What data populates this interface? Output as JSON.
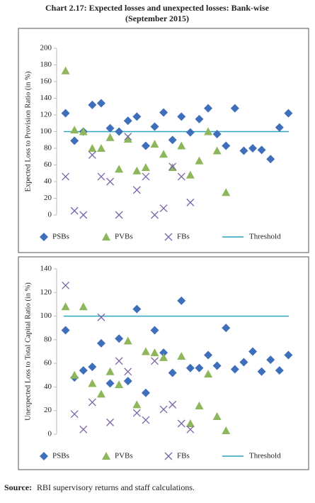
{
  "title": "Chart 2.17: Expected losses and unexpected losses: Bank-wise",
  "subtitle": "(September 2015)",
  "source": {
    "label": "Source:",
    "text": "RBI supervisory returns and staff calculations."
  },
  "chart_data": [
    {
      "type": "scatter",
      "ylabel": "Expected Loss to Provision Ratio (in %)",
      "xlim": [
        0,
        27
      ],
      "ylim": [
        0,
        200
      ],
      "yticks": [
        0,
        20,
        40,
        60,
        80,
        100,
        120,
        140,
        160,
        180,
        200
      ],
      "series": [
        {
          "name": "PSBs",
          "marker": "diamond",
          "color": "#3f6fba",
          "x": [
            1,
            2,
            3,
            4,
            5,
            6,
            7,
            8,
            9,
            10,
            11,
            12,
            13,
            14,
            15,
            16,
            17,
            18,
            19,
            20,
            21,
            22,
            23,
            24,
            25,
            26
          ],
          "values": [
            122,
            89,
            100,
            132,
            134,
            104,
            100,
            113,
            118,
            83,
            106,
            123,
            90,
            118,
            99,
            115,
            128,
            97,
            83,
            128,
            77,
            80,
            78,
            67,
            105,
            122
          ]
        },
        {
          "name": "PVBs",
          "marker": "triangle",
          "color": "#8db75a",
          "x": [
            1,
            2,
            3,
            4,
            5,
            6,
            7,
            8,
            9,
            10,
            11,
            12,
            13,
            14,
            15,
            16,
            17,
            18,
            19
          ],
          "values": [
            173,
            102,
            100,
            80,
            80,
            93,
            55,
            91,
            53,
            57,
            85,
            73,
            57,
            83,
            48,
            65,
            100,
            77,
            27
          ]
        },
        {
          "name": "FBs",
          "marker": "cross",
          "color": "#7a64a8",
          "x": [
            1,
            2,
            3,
            4,
            5,
            6,
            7,
            8,
            9,
            10,
            11,
            12,
            13,
            14,
            15
          ],
          "values": [
            46,
            5,
            0,
            72,
            46,
            40,
            0,
            94,
            30,
            46,
            0,
            8,
            58,
            46,
            15
          ]
        }
      ],
      "threshold": {
        "name": "Threshold",
        "value": 100,
        "color": "#2fa4c4"
      }
    },
    {
      "type": "scatter",
      "ylabel": "Unexpected Loss to Total Capital Ratio (in %)",
      "xlim": [
        0,
        27
      ],
      "ylim": [
        0,
        140
      ],
      "yticks": [
        0,
        20,
        40,
        60,
        80,
        100,
        120,
        140
      ],
      "series": [
        {
          "name": "PSBs",
          "marker": "diamond",
          "color": "#3f6fba",
          "x": [
            1,
            2,
            3,
            4,
            5,
            6,
            7,
            8,
            9,
            10,
            11,
            12,
            13,
            14,
            15,
            16,
            17,
            18,
            19,
            20,
            21,
            22,
            23,
            24,
            25,
            26
          ],
          "values": [
            88,
            48,
            54,
            57,
            77,
            43,
            81,
            45,
            106,
            35,
            88,
            69,
            52,
            113,
            56,
            56,
            67,
            58,
            90,
            55,
            61,
            70,
            53,
            63,
            54,
            67
          ]
        },
        {
          "name": "PVBs",
          "marker": "triangle",
          "color": "#8db75a",
          "x": [
            1,
            2,
            3,
            4,
            5,
            6,
            7,
            8,
            9,
            10,
            11,
            12,
            14,
            15,
            16,
            17,
            18,
            19
          ],
          "values": [
            108,
            50,
            108,
            43,
            34,
            53,
            42,
            79,
            25,
            70,
            69,
            65,
            66,
            9,
            24,
            51,
            15,
            3
          ]
        },
        {
          "name": "FBs",
          "marker": "cross",
          "color": "#7a64a8",
          "x": [
            1,
            2,
            3,
            4,
            5,
            6,
            7,
            8,
            9,
            10,
            11,
            12,
            13,
            14,
            15
          ],
          "values": [
            126,
            17,
            4,
            27,
            99,
            10,
            62,
            53,
            18,
            12,
            62,
            21,
            25,
            9,
            4
          ]
        }
      ],
      "threshold": {
        "name": "Threshold",
        "value": 100,
        "color": "#2fa4c4"
      }
    }
  ]
}
